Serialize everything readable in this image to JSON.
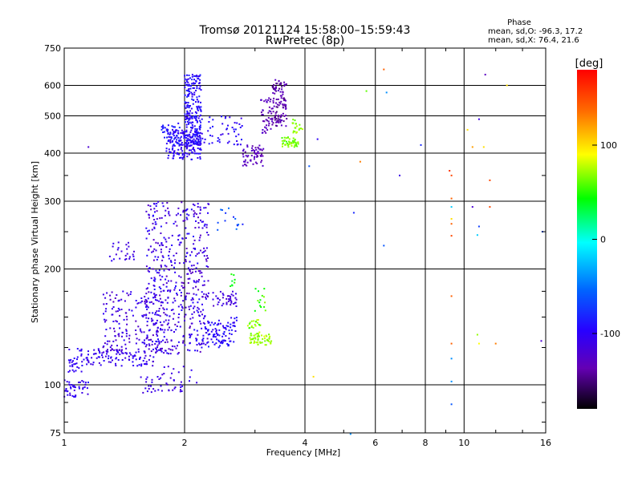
{
  "chart_data": {
    "type": "scatter",
    "title": "Tromsø 20121124 15:58:00–15:59:43",
    "subtitle": "RwPretec (8p)",
    "xlabel": "Frequency [MHz]",
    "ylabel": "Stationary phase Virtual Height [km]",
    "x_scale": "log",
    "y_scale": "log",
    "xlim": [
      1,
      16
    ],
    "ylim": [
      75,
      750
    ],
    "x_ticks": [
      1,
      2,
      4,
      6,
      8,
      10,
      16
    ],
    "x_tick_labels": [
      "1",
      "2",
      "4",
      "6",
      "8",
      "10",
      "16"
    ],
    "y_ticks": [
      75,
      100,
      200,
      300,
      400,
      500,
      600,
      750
    ],
    "y_tick_labels": [
      "75",
      "100",
      "200",
      "300",
      "400",
      "500",
      "600",
      "750"
    ],
    "grid": true,
    "phase_stats": {
      "title": "Phase",
      "line_o": "mean, sd,O: -96.3, 17.2",
      "line_x": "mean, sd,X: 76.4, 21.6"
    },
    "colorbar": {
      "label": "[deg]",
      "range": [
        -180,
        180
      ],
      "ticks": [
        100,
        0,
        -100
      ],
      "tick_labels": [
        "100",
        "0",
        "-100"
      ]
    },
    "clusters": [
      {
        "freq": [
          1.0,
          1.15
        ],
        "height": [
          93,
          103
        ],
        "phase": [
          -115,
          -95
        ],
        "count": 45
      },
      {
        "freq": [
          1.02,
          1.12
        ],
        "height": [
          108,
          125
        ],
        "phase": [
          -110,
          -95
        ],
        "count": 30
      },
      {
        "freq": [
          1.1,
          1.7
        ],
        "height": [
          112,
          124
        ],
        "phase": [
          -120,
          -95
        ],
        "count": 110
      },
      {
        "freq": [
          1.25,
          1.75
        ],
        "height": [
          122,
          175
        ],
        "phase": [
          -130,
          -95
        ],
        "count": 170
      },
      {
        "freq": [
          1.3,
          1.5
        ],
        "height": [
          210,
          235
        ],
        "phase": [
          -120,
          -100
        ],
        "count": 25
      },
      {
        "freq": [
          1.6,
          2.3
        ],
        "height": [
          120,
          300
        ],
        "phase": [
          -130,
          -90
        ],
        "count": 520
      },
      {
        "freq": [
          1.55,
          1.75
        ],
        "height": [
          95,
          105
        ],
        "phase": [
          -120,
          -100
        ],
        "count": 20
      },
      {
        "freq": [
          1.75,
          2.15
        ],
        "height": [
          95,
          112
        ],
        "phase": [
          -120,
          -100
        ],
        "count": 30
      },
      {
        "freq": [
          2.2,
          2.7
        ],
        "height": [
          125,
          150
        ],
        "phase": [
          -110,
          -85
        ],
        "count": 100
      },
      {
        "freq": [
          2.35,
          2.7
        ],
        "height": [
          160,
          175
        ],
        "phase": [
          -125,
          -105
        ],
        "count": 40
      },
      {
        "freq": [
          2.4,
          2.8
        ],
        "height": [
          250,
          290
        ],
        "phase": [
          -90,
          -40
        ],
        "count": 14
      },
      {
        "freq": [
          1.8,
          2.2
        ],
        "height": [
          385,
          460
        ],
        "phase": [
          -110,
          -90
        ],
        "count": 160
      },
      {
        "freq": [
          2.0,
          2.2
        ],
        "height": [
          420,
          640
        ],
        "phase": [
          -110,
          -80
        ],
        "count": 240
      },
      {
        "freq": [
          1.75,
          1.95
        ],
        "height": [
          420,
          480
        ],
        "phase": [
          -100,
          -75
        ],
        "count": 40
      },
      {
        "freq": [
          2.2,
          2.8
        ],
        "height": [
          420,
          500
        ],
        "phase": [
          -110,
          -85
        ],
        "count": 50
      },
      {
        "freq": [
          2.8,
          3.15
        ],
        "height": [
          370,
          420
        ],
        "phase": [
          -140,
          -120
        ],
        "count": 60
      },
      {
        "freq": [
          3.1,
          3.3
        ],
        "height": [
          450,
          560
        ],
        "phase": [
          -145,
          -120
        ],
        "count": 40
      },
      {
        "freq": [
          3.3,
          3.6
        ],
        "height": [
          470,
          620
        ],
        "phase": [
          -150,
          -125
        ],
        "count": 110
      },
      {
        "freq": [
          3.5,
          3.85
        ],
        "height": [
          415,
          440
        ],
        "phase": [
          50,
          75
        ],
        "count": 50
      },
      {
        "freq": [
          3.7,
          3.95
        ],
        "height": [
          450,
          490
        ],
        "phase": [
          55,
          80
        ],
        "count": 20
      },
      {
        "freq": [
          2.9,
          3.3
        ],
        "height": [
          127,
          137
        ],
        "phase": [
          60,
          85
        ],
        "count": 55
      },
      {
        "freq": [
          2.85,
          3.1
        ],
        "height": [
          140,
          150
        ],
        "phase": [
          50,
          80
        ],
        "count": 20
      },
      {
        "freq": [
          3.0,
          3.2
        ],
        "height": [
          155,
          180
        ],
        "phase": [
          40,
          70
        ],
        "count": 14
      },
      {
        "freq": [
          2.6,
          2.7
        ],
        "height": [
          180,
          195
        ],
        "phase": [
          30,
          60
        ],
        "count": 8
      }
    ],
    "isolated_points": [
      {
        "freq": 1.15,
        "height": 415,
        "phase": -120
      },
      {
        "freq": 4.3,
        "height": 435,
        "phase": -100
      },
      {
        "freq": 4.1,
        "height": 370,
        "phase": -60
      },
      {
        "freq": 5.5,
        "height": 380,
        "phase": 130
      },
      {
        "freq": 5.7,
        "height": 580,
        "phase": 60
      },
      {
        "freq": 5.3,
        "height": 280,
        "phase": -80
      },
      {
        "freq": 6.3,
        "height": 660,
        "phase": 140
      },
      {
        "freq": 6.4,
        "height": 575,
        "phase": -40
      },
      {
        "freq": 6.3,
        "height": 230,
        "phase": -60
      },
      {
        "freq": 6.9,
        "height": 350,
        "phase": -110
      },
      {
        "freq": 7.8,
        "height": 420,
        "phase": -80
      },
      {
        "freq": 4.2,
        "height": 105,
        "phase": 100
      },
      {
        "freq": 9.2,
        "height": 360,
        "phase": 160
      },
      {
        "freq": 9.3,
        "height": 350,
        "phase": 150
      },
      {
        "freq": 9.3,
        "height": 305,
        "phase": 140
      },
      {
        "freq": 9.3,
        "height": 290,
        "phase": -20
      },
      {
        "freq": 9.3,
        "height": 270,
        "phase": 100
      },
      {
        "freq": 9.3,
        "height": 262,
        "phase": 140
      },
      {
        "freq": 9.3,
        "height": 244,
        "phase": 150
      },
      {
        "freq": 9.3,
        "height": 170,
        "phase": 140
      },
      {
        "freq": 9.3,
        "height": 128,
        "phase": 140
      },
      {
        "freq": 9.3,
        "height": 117,
        "phase": -40
      },
      {
        "freq": 9.3,
        "height": 102,
        "phase": -40
      },
      {
        "freq": 9.3,
        "height": 89,
        "phase": -60
      },
      {
        "freq": 10.2,
        "height": 460,
        "phase": 100
      },
      {
        "freq": 10.5,
        "height": 415,
        "phase": 120
      },
      {
        "freq": 10.9,
        "height": 490,
        "phase": -110
      },
      {
        "freq": 10.5,
        "height": 290,
        "phase": -120
      },
      {
        "freq": 11.2,
        "height": 415,
        "phase": 100
      },
      {
        "freq": 11.6,
        "height": 340,
        "phase": 150
      },
      {
        "freq": 11.6,
        "height": 290,
        "phase": 150
      },
      {
        "freq": 11.3,
        "height": 640,
        "phase": -130
      },
      {
        "freq": 12.8,
        "height": 600,
        "phase": 100
      },
      {
        "freq": 10.9,
        "height": 258,
        "phase": -70
      },
      {
        "freq": 10.8,
        "height": 245,
        "phase": -20
      },
      {
        "freq": 10.8,
        "height": 135,
        "phase": 70
      },
      {
        "freq": 10.9,
        "height": 128,
        "phase": 90
      },
      {
        "freq": 12.0,
        "height": 128,
        "phase": 130
      },
      {
        "freq": 15.6,
        "height": 130,
        "phase": -120
      },
      {
        "freq": 15.7,
        "height": 250,
        "phase": -60
      },
      {
        "freq": 5.2,
        "height": 74.5,
        "phase": -40
      }
    ]
  }
}
